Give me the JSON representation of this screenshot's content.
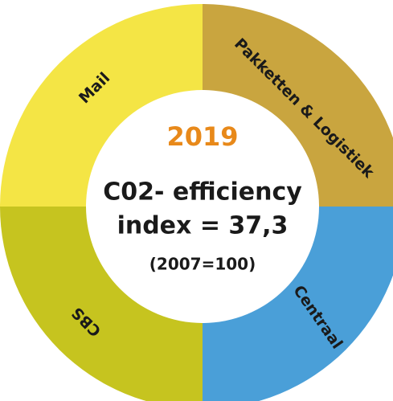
{
  "segments": [
    {
      "label": "Mail",
      "color": "#f4e545"
    },
    {
      "label": "Pakketten & Logistiek",
      "color": "#c9a53f"
    },
    {
      "label": "Centraal",
      "color": "#4a9fd8"
    },
    {
      "label": "CBS",
      "color": "#c6c41f"
    }
  ],
  "center": {
    "year": "2019",
    "line1": "C02- efficiency",
    "line2": "index = 37,3",
    "note": "(2007=100)"
  }
}
